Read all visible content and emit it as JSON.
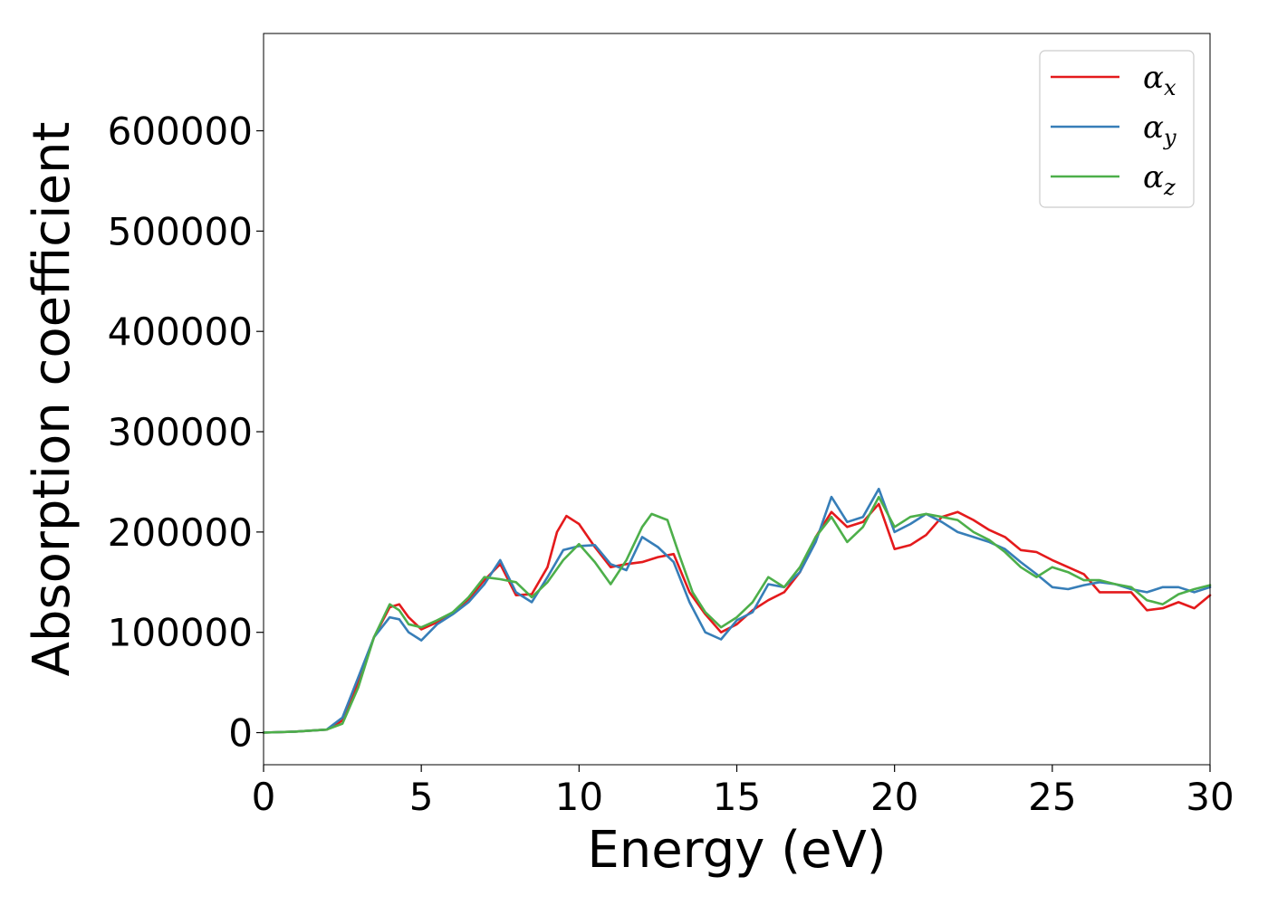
{
  "chart_data": {
    "type": "line",
    "xlabel": "Energy (eV)",
    "ylabel": "Absorption coefficient",
    "xlim": [
      0,
      30
    ],
    "ylim": [
      -32000,
      697000
    ],
    "xticks": [
      0,
      5,
      10,
      15,
      20,
      25,
      30
    ],
    "yticks": [
      0,
      100000,
      200000,
      300000,
      400000,
      500000,
      600000
    ],
    "grid": false,
    "legend_position": "top-right",
    "series": [
      {
        "name": "αx",
        "symbol": "α",
        "subscript": "x",
        "color": "#e41a1c",
        "x": [
          0,
          1,
          2,
          2.5,
          3,
          3.5,
          4,
          4.3,
          4.6,
          5,
          5.5,
          6,
          6.5,
          7,
          7.5,
          8,
          8.5,
          9,
          9.3,
          9.6,
          10,
          10.5,
          11,
          11.5,
          12,
          12.5,
          13,
          13.5,
          14,
          14.5,
          15,
          15.5,
          16,
          16.5,
          17,
          17.5,
          18,
          18.5,
          19,
          19.5,
          20,
          20.5,
          21,
          21.5,
          22,
          22.5,
          23,
          23.5,
          24,
          24.5,
          25,
          25.5,
          26,
          26.5,
          27,
          27.5,
          28,
          28.5,
          29,
          29.5,
          30
        ],
        "y": [
          0,
          1000,
          3000,
          12000,
          50000,
          95000,
          125000,
          128000,
          115000,
          103000,
          110000,
          120000,
          133000,
          152000,
          168000,
          137000,
          138000,
          165000,
          200000,
          216000,
          208000,
          185000,
          165000,
          168000,
          170000,
          175000,
          178000,
          140000,
          118000,
          100000,
          108000,
          122000,
          132000,
          140000,
          160000,
          195000,
          220000,
          205000,
          210000,
          228000,
          183000,
          187000,
          197000,
          215000,
          220000,
          212000,
          202000,
          195000,
          182000,
          180000,
          172000,
          165000,
          158000,
          140000,
          140000,
          140000,
          122000,
          124000,
          130000,
          124000,
          137000
        ]
      },
      {
        "name": "αy",
        "symbol": "α",
        "subscript": "y",
        "color": "#377eb8",
        "x": [
          0,
          1,
          2,
          2.5,
          3,
          3.5,
          4,
          4.3,
          4.6,
          5,
          5.5,
          6,
          6.5,
          7,
          7.5,
          8,
          8.5,
          9,
          9.5,
          10,
          10.5,
          11,
          11.5,
          12,
          12.5,
          13,
          13.5,
          14,
          14.5,
          15,
          15.5,
          16,
          16.5,
          17,
          17.5,
          18,
          18.5,
          19,
          19.5,
          20,
          20.5,
          21,
          21.5,
          22,
          22.5,
          23,
          23.5,
          24,
          24.5,
          25,
          25.5,
          26,
          26.5,
          27,
          27.5,
          28,
          28.5,
          29,
          29.5,
          30
        ],
        "y": [
          0,
          1000,
          3000,
          15000,
          55000,
          95000,
          115000,
          113000,
          100000,
          92000,
          108000,
          118000,
          130000,
          148000,
          172000,
          140000,
          130000,
          155000,
          182000,
          186000,
          187000,
          168000,
          162000,
          195000,
          185000,
          170000,
          130000,
          100000,
          93000,
          112000,
          120000,
          148000,
          145000,
          160000,
          190000,
          235000,
          210000,
          215000,
          243000,
          200000,
          208000,
          218000,
          210000,
          200000,
          195000,
          190000,
          183000,
          170000,
          158000,
          145000,
          143000,
          147000,
          150000,
          148000,
          143000,
          140000,
          145000,
          145000,
          140000,
          145000
        ]
      },
      {
        "name": "αz",
        "symbol": "α",
        "subscript": "z",
        "color": "#4daf4a",
        "x": [
          0,
          1,
          2,
          2.5,
          3,
          3.5,
          4,
          4.3,
          4.6,
          5,
          5.5,
          6,
          6.5,
          7,
          7.5,
          8,
          8.5,
          9,
          9.5,
          10,
          10.5,
          11,
          11.5,
          12,
          12.3,
          12.8,
          13.2,
          13.6,
          14,
          14.5,
          15,
          15.5,
          16,
          16.5,
          17,
          17.5,
          18,
          18.5,
          19,
          19.5,
          20,
          20.5,
          21,
          21.5,
          22,
          22.5,
          23,
          23.5,
          24,
          24.5,
          25,
          25.5,
          26,
          26.5,
          27,
          27.5,
          28,
          28.5,
          29,
          29.5,
          30
        ],
        "y": [
          0,
          1000,
          3000,
          9000,
          45000,
          95000,
          128000,
          122000,
          108000,
          105000,
          112000,
          120000,
          135000,
          155000,
          153000,
          150000,
          135000,
          150000,
          172000,
          188000,
          170000,
          148000,
          172000,
          205000,
          218000,
          212000,
          175000,
          140000,
          120000,
          105000,
          115000,
          130000,
          155000,
          145000,
          165000,
          195000,
          215000,
          190000,
          205000,
          235000,
          205000,
          215000,
          218000,
          215000,
          212000,
          200000,
          192000,
          180000,
          165000,
          155000,
          165000,
          160000,
          152000,
          152000,
          148000,
          145000,
          132000,
          128000,
          138000,
          143000,
          147000
        ]
      }
    ]
  }
}
